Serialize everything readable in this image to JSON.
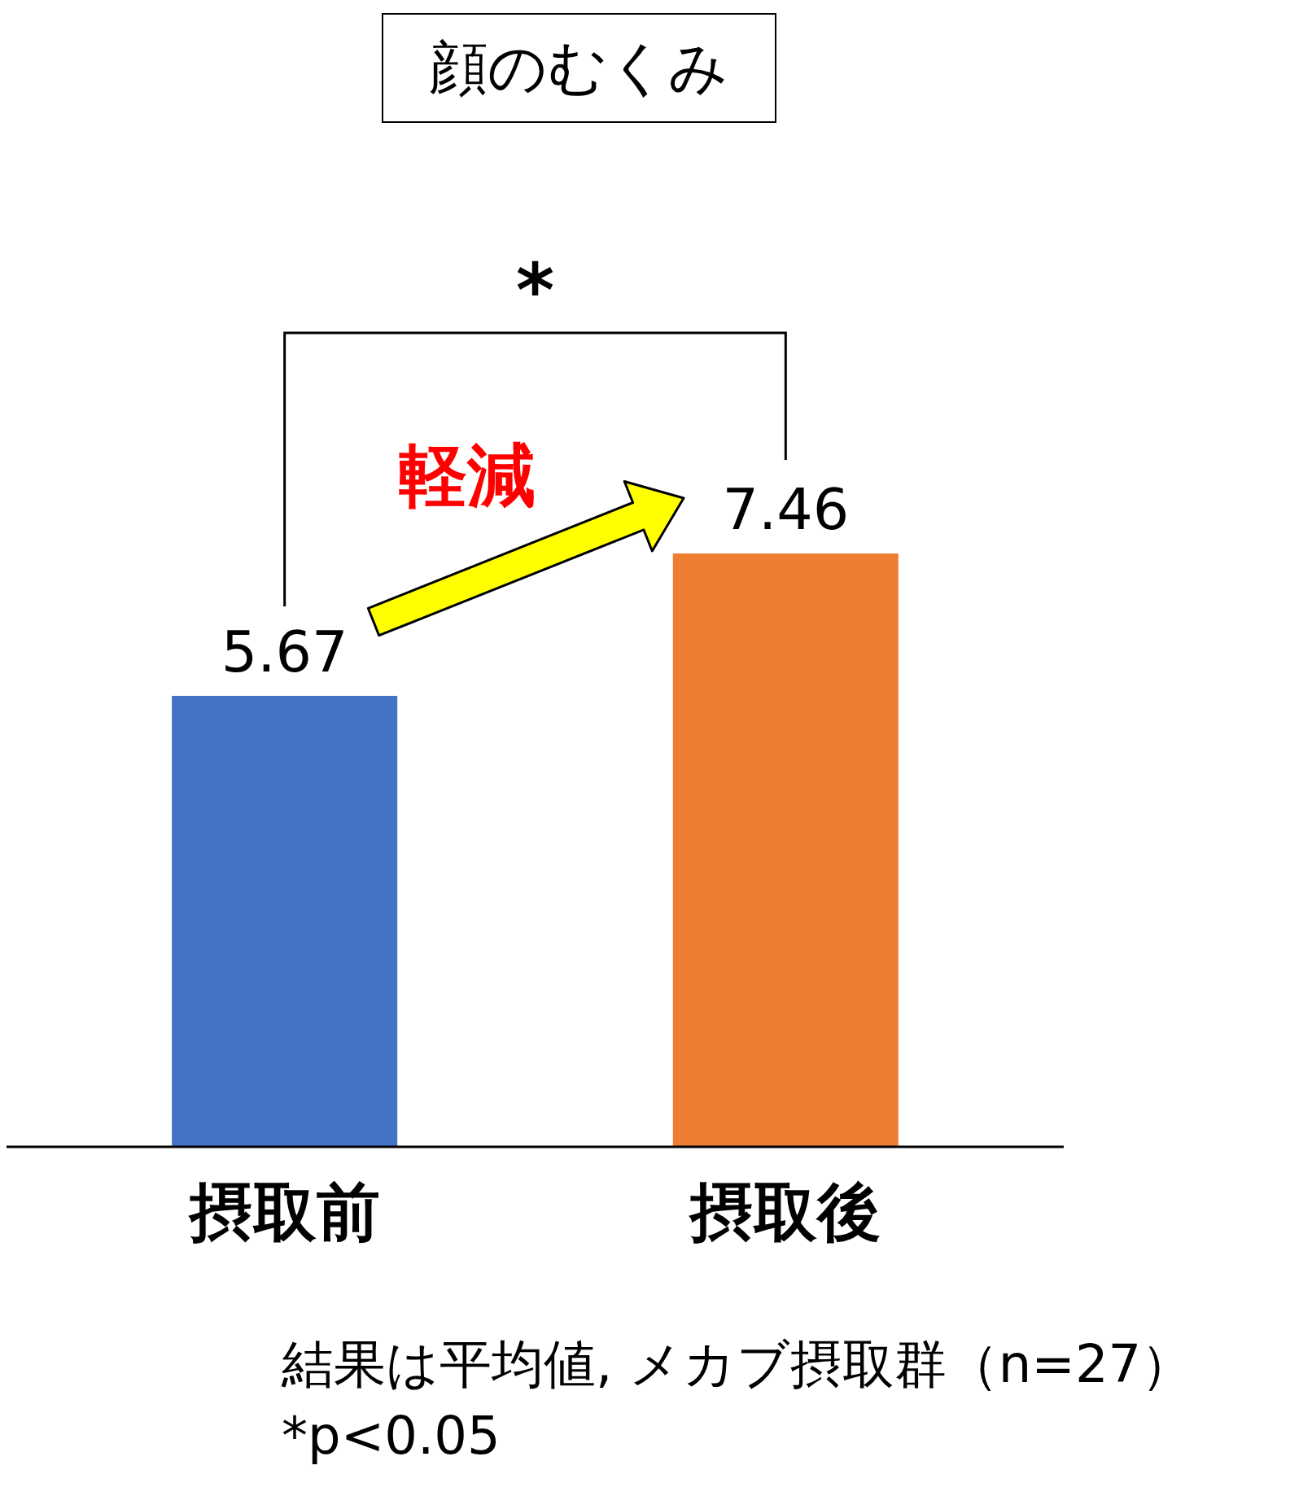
{
  "chart_data": {
    "type": "bar",
    "title": "顔のむくみ",
    "categories": [
      "摂取前",
      "摂取後"
    ],
    "values": [
      5.67,
      7.46
    ],
    "colors": [
      "#4472c4",
      "#ed7d31"
    ],
    "data_labels": true,
    "annotations": [
      "*",
      "軽減",
      "結果は平均値, メカブ摂取群（n=27）",
      "*p<0.05"
    ]
  }
}
